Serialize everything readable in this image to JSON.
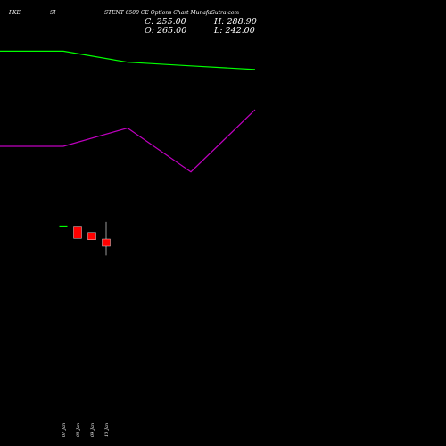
{
  "header": {
    "exchange": "PKE",
    "symbol_fragment": "SI",
    "title": "STENT 6500 CE Options Chart MunafaSutra.com"
  },
  "ohlc": {
    "close_text": "C: 255.00",
    "high_text": "H: 288.90",
    "open_text": "O: 265.00",
    "low_text": "L: 242.00"
  },
  "colors": {
    "background": "#000000",
    "green_line": "#00ff00",
    "purple_line": "#c000c0",
    "bear_candle": "#ff0000",
    "bull_candle": "#00ff00",
    "wick": "#ffffff",
    "text": "#ffffff"
  },
  "chart_data": {
    "type": "candlestick",
    "title": "STENT 6500 CE Options Chart MunafaSutra.com",
    "categories": [
      "07 Jan",
      "08 Jan",
      "09 Jan",
      "10 Jan"
    ],
    "candles": [
      {
        "date": "07 Jan",
        "open": 283,
        "high": 283,
        "low": 283,
        "close": 283,
        "direction": "flat"
      },
      {
        "date": "08 Jan",
        "open": 283,
        "high": 283,
        "low": 266,
        "close": 266,
        "direction": "down"
      },
      {
        "date": "09 Jan",
        "open": 274,
        "high": 274,
        "low": 264,
        "close": 264,
        "direction": "down"
      },
      {
        "date": "10 Jan",
        "open": 265,
        "high": 288.9,
        "low": 242,
        "close": 255,
        "direction": "down"
      }
    ],
    "series": [
      {
        "x": [
          0,
          1,
          2,
          3
        ],
        "values": [
          0.86,
          0.83,
          0.82,
          0.81
        ],
        "color": "#00ff00"
      },
      {
        "x": [
          0,
          1,
          2,
          3
        ],
        "values": [
          0.6,
          0.65,
          0.53,
          0.7
        ],
        "color": "#c000c0"
      }
    ],
    "y_price_range": [
      200,
      300
    ],
    "overlay_range": [
      0,
      1
    ],
    "grid": false,
    "legend": "none"
  }
}
